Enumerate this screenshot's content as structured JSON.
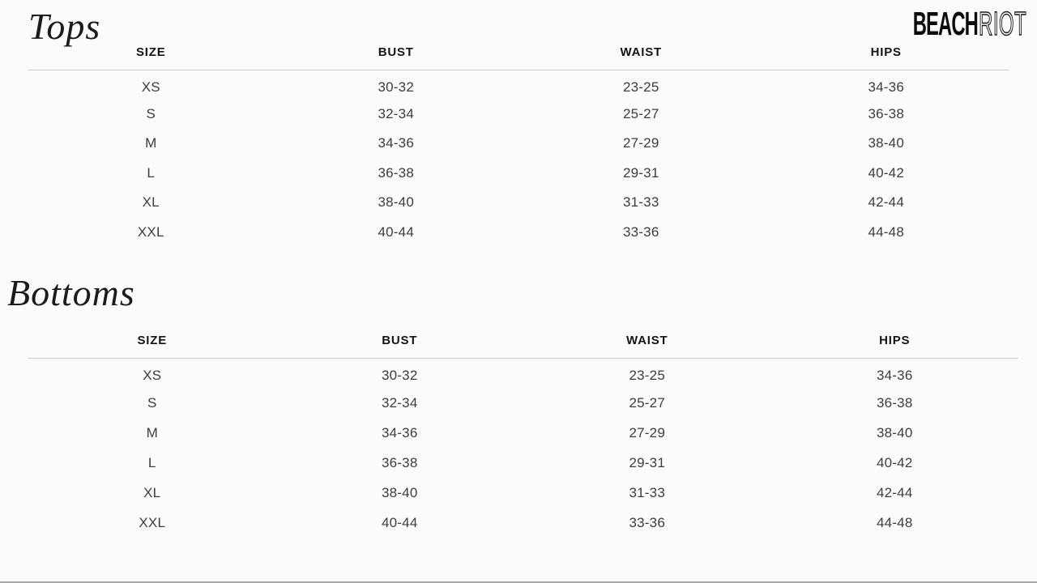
{
  "logo": {
    "solid": "BEACH",
    "outline": "RIOT"
  },
  "sections": [
    {
      "title": "Tops",
      "table": {
        "headers": [
          "SIZE",
          "BUST",
          "WAIST",
          "HIPS"
        ],
        "rows": [
          [
            "XS",
            "30-32",
            "23-25",
            "34-36"
          ],
          [
            "S",
            "32-34",
            "25-27",
            "36-38"
          ],
          [
            "M",
            "34-36",
            "27-29",
            "38-40"
          ],
          [
            "L",
            "36-38",
            "29-31",
            "40-42"
          ],
          [
            "XL",
            "38-40",
            "31-33",
            "42-44"
          ],
          [
            "XXL",
            "40-44",
            "33-36",
            "44-48"
          ]
        ]
      }
    },
    {
      "title": "Bottoms",
      "table": {
        "headers": [
          "SIZE",
          "BUST",
          "WAIST",
          "HIPS"
        ],
        "rows": [
          [
            "XS",
            "30-32",
            "23-25",
            "34-36"
          ],
          [
            "S",
            "32-34",
            "25-27",
            "36-38"
          ],
          [
            "M",
            "34-36",
            "27-29",
            "38-40"
          ],
          [
            "L",
            "36-38",
            "29-31",
            "40-42"
          ],
          [
            "XL",
            "38-40",
            "31-33",
            "42-44"
          ],
          [
            "XXL",
            "40-44",
            "33-36",
            "44-48"
          ]
        ]
      }
    }
  ]
}
